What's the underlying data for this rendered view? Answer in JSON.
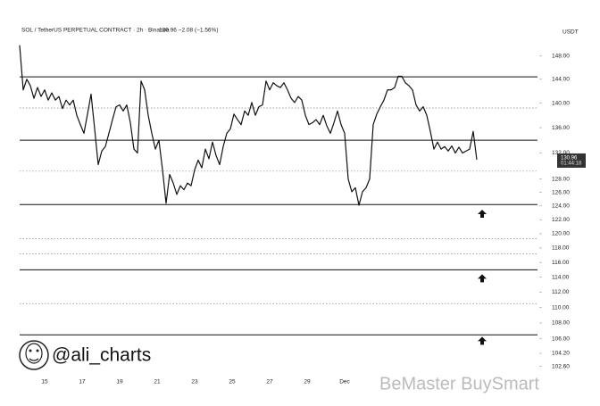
{
  "chart_data": {
    "type": "line",
    "title": "SOL / TetherUS PERPETUAL CONTRACT · 2h · Binance",
    "subtitle": "130.96  −2.08 (−1.56%)",
    "currency": "USDT",
    "log_scale": true,
    "color": "#111111",
    "ylim": [
      101.6,
      153.2
    ],
    "yticks": [
      {
        "value": 148,
        "label": "148.00"
      },
      {
        "value": 144,
        "label": "144.00"
      },
      {
        "value": 140,
        "label": "140.00"
      },
      {
        "value": 136,
        "label": "136.00"
      },
      {
        "value": 132,
        "label": "132.00"
      },
      {
        "value": 128,
        "label": "128.00"
      },
      {
        "value": 126,
        "label": "126.00"
      },
      {
        "value": 124,
        "label": "124.00"
      },
      {
        "value": 122,
        "label": "122.00"
      },
      {
        "value": 120,
        "label": "120.00"
      },
      {
        "value": 118,
        "label": "118.00"
      },
      {
        "value": 116,
        "label": "116.00"
      },
      {
        "value": 114,
        "label": "114.00"
      },
      {
        "value": 112,
        "label": "112.00"
      },
      {
        "value": 110,
        "label": "110.00"
      },
      {
        "value": 108,
        "label": "108.00"
      },
      {
        "value": 106,
        "label": "106.00"
      },
      {
        "value": 104.2,
        "label": "104.20"
      },
      {
        "value": 102.6,
        "label": "102.60"
      }
    ],
    "x_labels": [
      "15",
      "17",
      "19",
      "21",
      "23",
      "25",
      "27",
      "29",
      "Dec"
    ],
    "values": [
      149.9,
      142.2,
      144.0,
      142.9,
      140.8,
      142.6,
      141.1,
      142.2,
      140.5,
      141.7,
      140.5,
      141.1,
      139.1,
      140.5,
      139.7,
      140.5,
      138.0,
      136.5,
      135.1,
      138.2,
      141.5,
      135.8,
      130.2,
      132.3,
      133.0,
      135.1,
      137.3,
      139.4,
      139.7,
      138.7,
      139.7,
      136.8,
      132.6,
      132.0,
      143.7,
      142.2,
      138.0,
      135.1,
      132.6,
      134.0,
      129.4,
      124.4,
      128.7,
      127.4,
      125.7,
      127.0,
      126.4,
      127.4,
      127.0,
      129.4,
      130.9,
      129.7,
      132.6,
      131.1,
      133.7,
      131.6,
      130.2,
      133.0,
      135.1,
      135.8,
      138.2,
      137.3,
      136.5,
      138.7,
      138.0,
      140.1,
      138.0,
      139.4,
      139.7,
      143.7,
      142.2,
      143.4,
      142.9,
      142.6,
      143.4,
      142.2,
      140.8,
      140.1,
      141.1,
      140.5,
      138.0,
      136.5,
      136.8,
      137.3,
      136.5,
      138.0,
      136.3,
      135.1,
      136.8,
      138.7,
      136.5,
      135.1,
      128.0,
      126.1,
      126.7,
      124.1,
      126.1,
      126.7,
      128.0,
      136.5,
      138.2,
      139.4,
      140.5,
      142.2,
      142.2,
      142.6,
      144.5,
      144.5,
      143.4,
      142.9,
      142.2,
      139.7,
      138.7,
      139.4,
      138.0,
      135.4,
      132.6,
      133.7,
      132.6,
      133.0,
      132.3,
      133.1,
      132.0,
      132.9,
      132.0,
      132.3,
      132.6,
      135.4,
      130.96
    ],
    "levels_solid": [
      144.4,
      134.0,
      124.2,
      115.0,
      106.5
    ],
    "levels_dotted": [
      139.2,
      129.2,
      119.3,
      117.2,
      110.5
    ],
    "markers": [
      122.8,
      113.8,
      105.7
    ],
    "price_tag": {
      "value": 130.96,
      "label": "130.96",
      "countdown": "01:44:18"
    },
    "logo_text": "@ali_charts",
    "watermark": "BeMaster BuySmart"
  }
}
